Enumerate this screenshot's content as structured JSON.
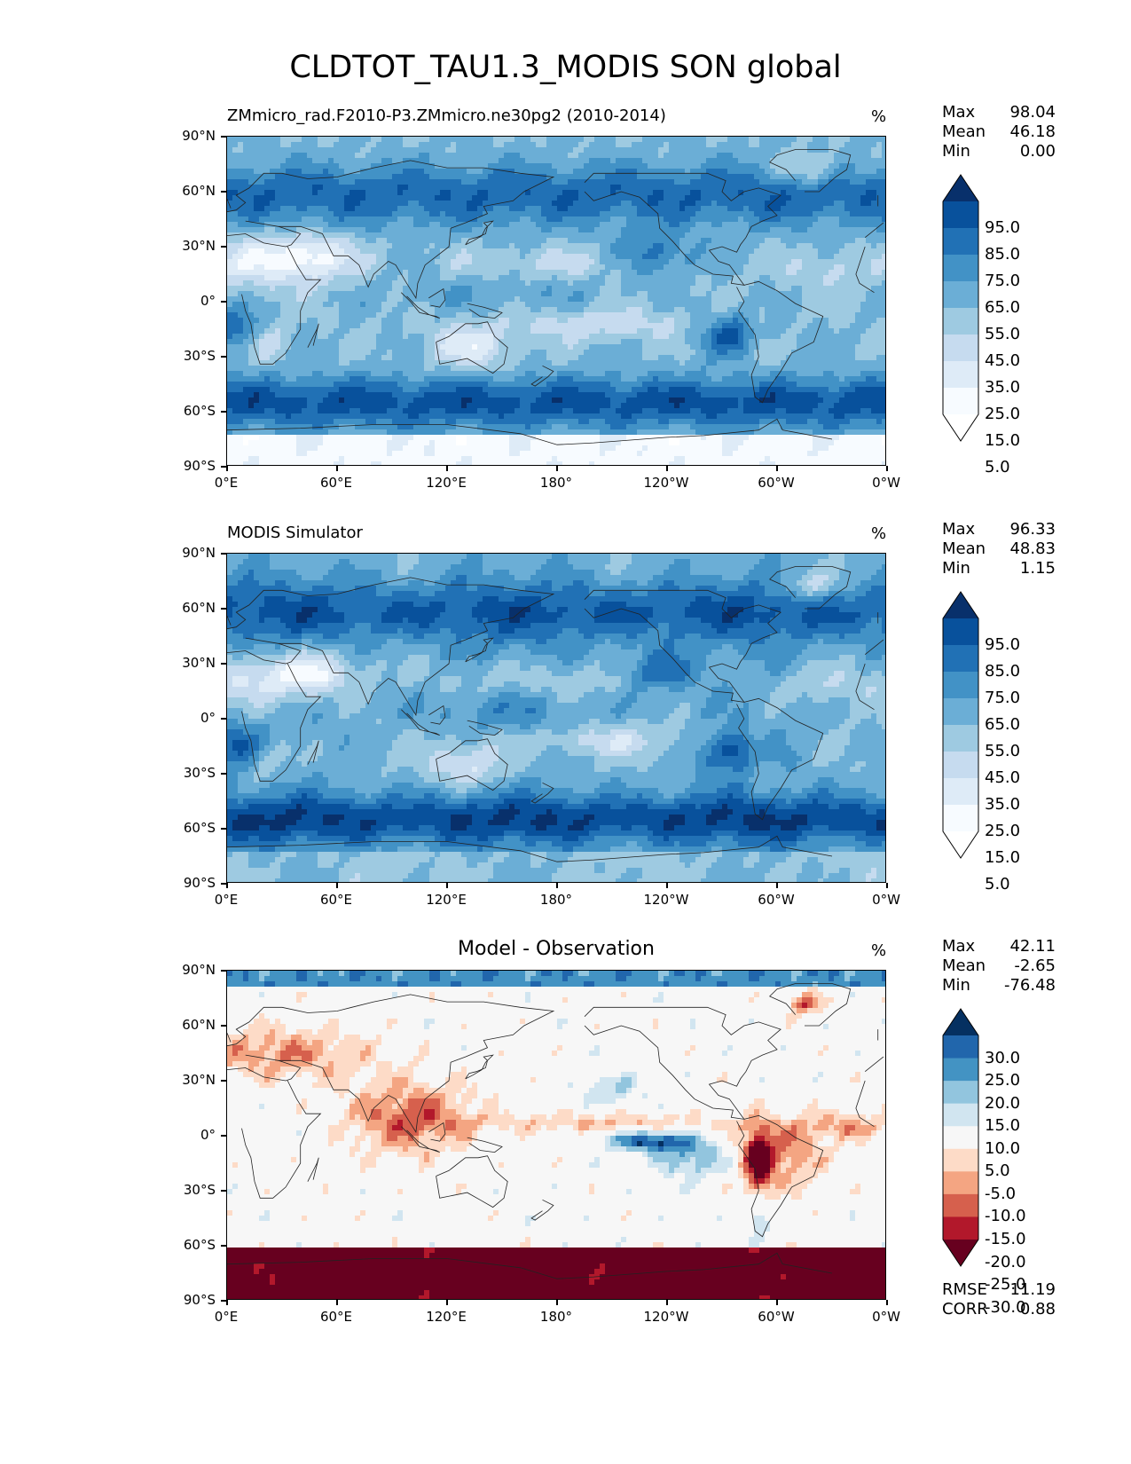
{
  "title": "CLDTOT_TAU1.3_MODIS SON global",
  "colors": {
    "blues": [
      "#ffffff",
      "#f7fbff",
      "#deebf7",
      "#c6dbef",
      "#9ecae1",
      "#6baed6",
      "#4292c6",
      "#2171b5",
      "#08519c",
      "#08306b"
    ],
    "diverging": [
      "#67001f",
      "#b2182b",
      "#d6604d",
      "#f4a582",
      "#fddbc7",
      "#f7f7f7",
      "#d1e5f0",
      "#92c5de",
      "#4393c3",
      "#2166ac",
      "#053061"
    ]
  },
  "panels": [
    {
      "left_title": "ZMmicro_rad.F2010-P3.ZMmicro.ne30pg2 (2010-2014)",
      "center_title": "",
      "units": "%",
      "stats": [
        {
          "label": "Max",
          "value": "98.04"
        },
        {
          "label": "Mean",
          "value": "46.18"
        },
        {
          "label": "Min",
          "value": "0.00"
        }
      ],
      "colorbar_labels": [
        "95.0",
        "85.0",
        "75.0",
        "65.0",
        "55.0",
        "45.0",
        "35.0",
        "25.0",
        "15.0",
        "5.0"
      ],
      "colormap": "Blues"
    },
    {
      "left_title": "MODIS Simulator",
      "center_title": "",
      "units": "%",
      "stats": [
        {
          "label": "Max",
          "value": "96.33"
        },
        {
          "label": "Mean",
          "value": "48.83"
        },
        {
          "label": "Min",
          "value": "1.15"
        }
      ],
      "colorbar_labels": [
        "95.0",
        "85.0",
        "75.0",
        "65.0",
        "55.0",
        "45.0",
        "35.0",
        "25.0",
        "15.0",
        "5.0"
      ],
      "colormap": "Blues"
    },
    {
      "left_title": "",
      "center_title": "Model - Observation",
      "units": "%",
      "stats": [
        {
          "label": "Max",
          "value": "42.11"
        },
        {
          "label": "Mean",
          "value": "-2.65"
        },
        {
          "label": "Min",
          "value": "-76.48"
        }
      ],
      "colorbar_labels": [
        "30.0",
        "25.0",
        "20.0",
        "15.0",
        "10.0",
        "5.0",
        "-5.0",
        "-10.0",
        "-15.0",
        "-20.0",
        "-25.0",
        "-30.0"
      ],
      "colormap": "RdBu",
      "extra_stats": [
        {
          "label": "RMSE",
          "value": "11.19"
        },
        {
          "label": "CORR",
          "value": "0.88"
        }
      ]
    }
  ],
  "axes": {
    "lat_labels": [
      "90°N",
      "60°N",
      "30°N",
      "0°",
      "30°S",
      "60°S",
      "90°S"
    ],
    "lon_labels": [
      "0°E",
      "60°E",
      "120°E",
      "180°",
      "120°W",
      "60°W",
      "0°W"
    ]
  },
  "chart_data": [
    {
      "type": "heatmap",
      "title": "ZMmicro_rad.F2010-P3.ZMmicro.ne30pg2 (2010-2014)",
      "units": "%",
      "xlim": [
        0,
        360
      ],
      "ylim": [
        -90,
        90
      ],
      "colorbar_levels": [
        5,
        15,
        25,
        35,
        45,
        55,
        65,
        75,
        85,
        95
      ],
      "max": 98.04,
      "mean": 46.18,
      "min": 0.0
    },
    {
      "type": "heatmap",
      "title": "MODIS Simulator",
      "units": "%",
      "xlim": [
        0,
        360
      ],
      "ylim": [
        -90,
        90
      ],
      "colorbar_levels": [
        5,
        15,
        25,
        35,
        45,
        55,
        65,
        75,
        85,
        95
      ],
      "max": 96.33,
      "mean": 48.83,
      "min": 1.15
    },
    {
      "type": "heatmap",
      "title": "Model - Observation",
      "units": "%",
      "xlim": [
        0,
        360
      ],
      "ylim": [
        -90,
        90
      ],
      "colorbar_levels": [
        -30,
        -25,
        -20,
        -15,
        -10,
        -5,
        5,
        10,
        15,
        20,
        25,
        30
      ],
      "max": 42.11,
      "mean": -2.65,
      "min": -76.48,
      "rmse": 11.19,
      "corr": 0.88
    }
  ]
}
